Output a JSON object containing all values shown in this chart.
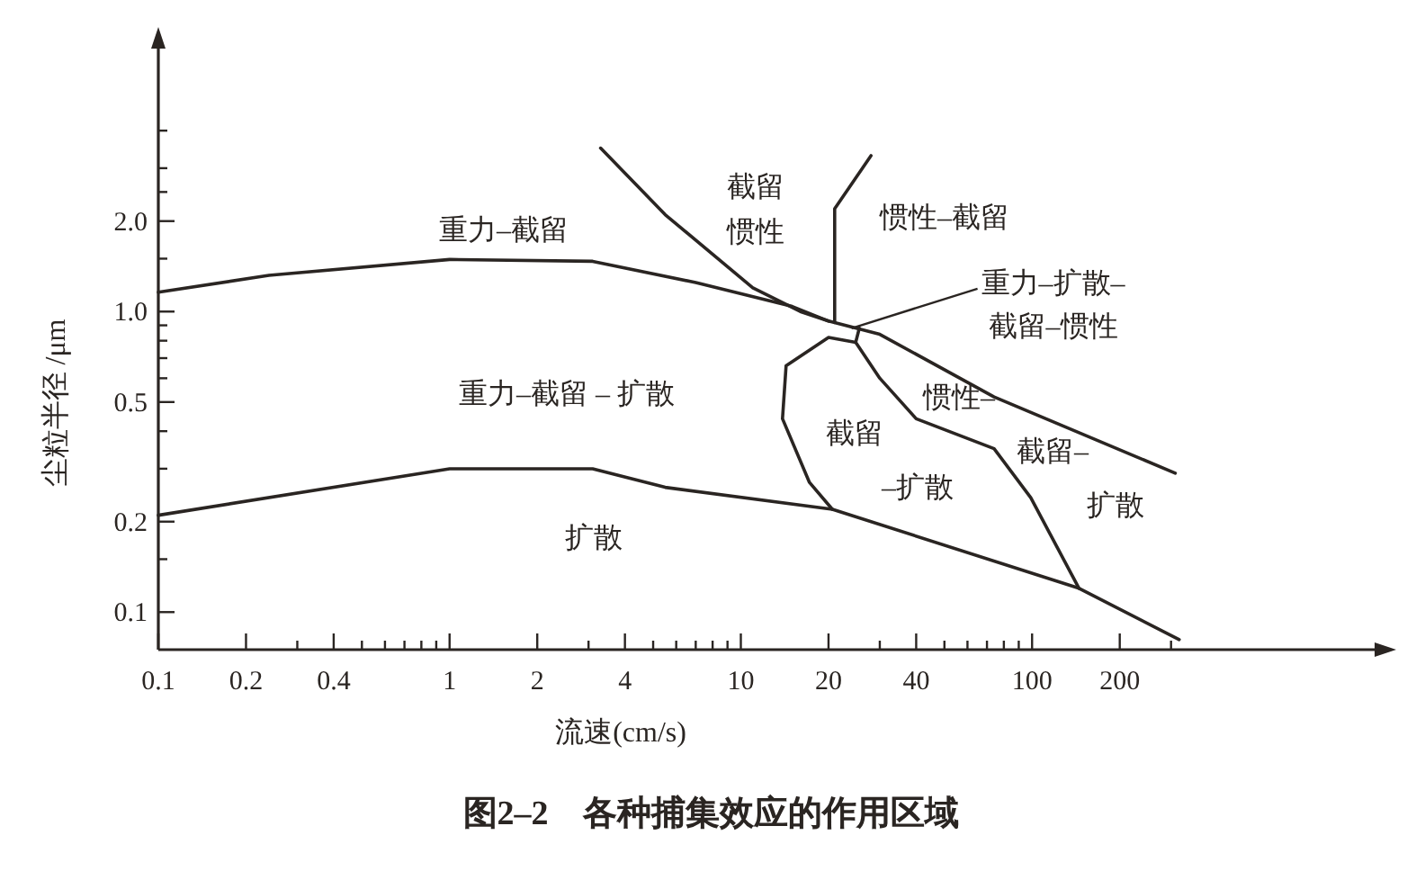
{
  "chart_data": {
    "type": "line",
    "title": "图2–2　各种捕集效应的作用区域",
    "xlabel": "流速(cm/s)",
    "ylabel": "尘粒半径 /μm",
    "log": "xy",
    "marker": "none",
    "line_style": "solid",
    "xlim": [
      0.1,
      1500
    ],
    "ylim": [
      0.075,
      7.5
    ],
    "xticks": [
      0.1,
      0.2,
      {
        "value": 0.3,
        "label": null
      },
      0.4,
      {
        "value": 0.5,
        "label": null
      },
      {
        "value": 0.6,
        "label": null
      },
      {
        "value": 0.7,
        "label": null
      },
      {
        "value": 0.8,
        "label": null
      },
      {
        "value": 0.9,
        "label": null
      },
      1,
      2,
      {
        "value": 3,
        "label": null
      },
      4,
      {
        "value": 5,
        "label": null
      },
      {
        "value": 6,
        "label": null
      },
      {
        "value": 7,
        "label": null
      },
      {
        "value": 8,
        "label": null
      },
      {
        "value": 9,
        "label": null
      },
      10,
      20,
      {
        "value": 30,
        "label": null
      },
      40,
      {
        "value": 50,
        "label": null
      },
      {
        "value": 60,
        "label": null
      },
      {
        "value": 70,
        "label": null
      },
      {
        "value": 80,
        "label": null
      },
      {
        "value": 90,
        "label": null
      },
      100,
      200,
      {
        "value": 300,
        "label": null
      }
    ],
    "yticks": [
      0.1,
      {
        "value": 0.15,
        "label": null
      },
      0.2,
      {
        "value": 0.3,
        "label": null
      },
      {
        "value": 0.4,
        "label": null
      },
      0.5,
      {
        "value": 0.6,
        "label": null
      },
      {
        "value": 0.7,
        "label": null
      },
      {
        "value": 0.8,
        "label": null
      },
      {
        "value": 0.9,
        "label": null
      },
      {
        "value": 1,
        "label": "1.0"
      },
      {
        "value": 1.5,
        "label": null
      },
      {
        "value": 2,
        "label": "2.0"
      },
      {
        "value": 2.5,
        "label": null
      },
      {
        "value": 3,
        "label": null
      },
      {
        "value": 4,
        "label": null
      }
    ],
    "series": [
      {
        "color": "#2a2522",
        "x": [
          0.1,
          0.24,
          1.0,
          3.1,
          7.0,
          15,
          20,
          30,
          74,
          310
        ],
        "values": [
          1.16,
          1.32,
          1.49,
          1.47,
          1.25,
          1.04,
          0.93,
          0.84,
          0.52,
          0.29
        ]
      },
      {
        "color": "#2a2522",
        "x": [
          0.1,
          1.0,
          3.1,
          5.5,
          20.6,
          145,
          320
        ],
        "values": [
          0.21,
          0.3,
          0.3,
          0.26,
          0.22,
          0.12,
          0.081
        ]
      },
      {
        "color": "#2a2522",
        "x": [
          3.3,
          5.5,
          11,
          16,
          20
        ],
        "values": [
          3.5,
          2.1,
          1.2,
          1.0,
          0.93
        ]
      },
      {
        "color": "#2a2522",
        "x": [
          28,
          21,
          21,
          21
        ],
        "values": [
          3.3,
          2.2,
          1.5,
          0.92
        ]
      },
      {
        "color": "#2a2522",
        "x": [
          24.8,
          20,
          14.3,
          13.9,
          17.2,
          20.6
        ],
        "values": [
          0.79,
          0.82,
          0.66,
          0.44,
          0.27,
          0.22
        ]
      },
      {
        "color": "#2a2522",
        "x": [
          25.5,
          24.8,
          30,
          40,
          74,
          99,
          145
        ],
        "values": [
          0.88,
          0.79,
          0.6,
          0.44,
          0.35,
          0.24,
          0.12
        ]
      }
    ],
    "annotations": [
      "重力–截留",
      "重力–截留 – 扩散",
      "扩散",
      "截留",
      "惯性",
      {
        "text": "重力–扩散–截留–惯性",
        "x": 24,
        "y": 0.88
      },
      "惯性–截留",
      "惯性–",
      "截留–",
      "扩散",
      "截留",
      "–扩散"
    ]
  }
}
